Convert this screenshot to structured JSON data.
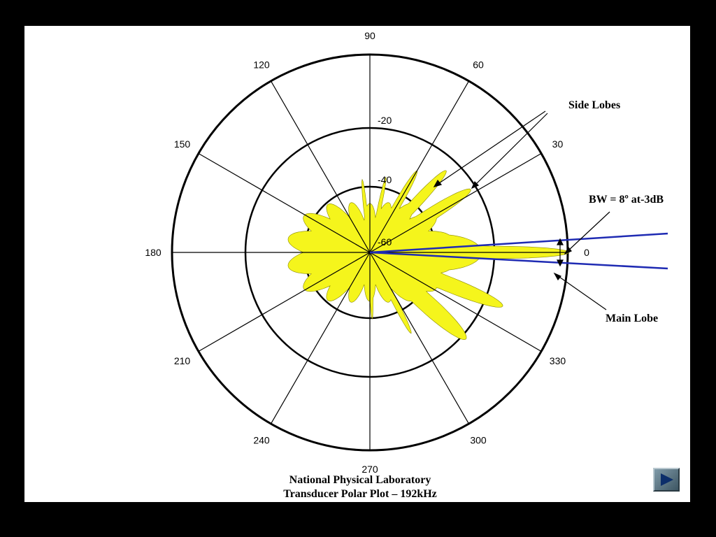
{
  "angle_labels": [
    "0",
    "30",
    "60",
    "90",
    "120",
    "150",
    "180",
    "210",
    "240",
    "270",
    "300",
    "330"
  ],
  "radial_labels": [
    "-20",
    "-40",
    "-60"
  ],
  "annotations": {
    "side_lobes": "Side Lobes",
    "bandwidth": "BW = 8º at-3dB",
    "main_lobe": "Main Lobe"
  },
  "caption": {
    "line1": "National Physical Laboratory",
    "line2": "Transducer Polar Plot – 192kHz"
  },
  "colors": {
    "pattern_fill": "#f5f51c",
    "beam_lines": "#1f2bb3",
    "grid": "#000000"
  },
  "nav": {
    "next_icon": "play-next-icon"
  }
}
